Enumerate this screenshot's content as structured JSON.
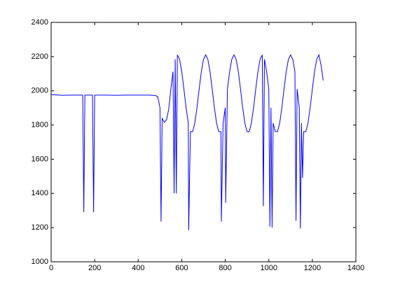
{
  "chart_data": {
    "type": "line",
    "color": "#0000ff",
    "x": [
      0,
      50,
      100,
      145,
      150,
      155,
      190,
      195,
      200,
      250,
      300,
      350,
      400,
      450,
      480,
      490,
      500,
      505,
      510,
      520,
      530,
      540,
      550,
      560,
      565,
      570,
      575,
      580,
      590,
      600,
      610,
      620,
      630,
      632,
      636,
      640,
      650,
      660,
      670,
      680,
      690,
      700,
      710,
      720,
      730,
      740,
      750,
      760,
      770,
      780,
      782,
      790,
      800,
      802,
      810,
      820,
      830,
      840,
      850,
      860,
      870,
      880,
      890,
      900,
      910,
      920,
      930,
      940,
      950,
      960,
      970,
      975,
      980,
      990,
      1000,
      1005,
      1010,
      1015,
      1020,
      1030,
      1040,
      1050,
      1060,
      1070,
      1080,
      1090,
      1100,
      1110,
      1120,
      1125,
      1130,
      1140,
      1145,
      1150,
      1155,
      1160,
      1170,
      1180,
      1190,
      1200,
      1210,
      1220,
      1230,
      1240,
      1250
    ],
    "values": [
      1978,
      1974,
      1975,
      1975,
      1290,
      1975,
      1975,
      1290,
      1975,
      1975,
      1974,
      1975,
      1975,
      1975,
      1972,
      1965,
      1900,
      1235,
      1840,
      1815,
      1830,
      1890,
      2010,
      2112,
      1400,
      2184,
      1400,
      2210,
      2184,
      2112,
      2010,
      1901,
      1811,
      1185,
      1490,
      1761,
      1761,
      1811,
      1901,
      2010,
      2112,
      2184,
      2210,
      2184,
      2112,
      2010,
      1901,
      1811,
      1761,
      1761,
      1235,
      1811,
      1901,
      1345,
      2010,
      2112,
      2184,
      2210,
      2184,
      2112,
      2010,
      1901,
      1811,
      1761,
      1761,
      1811,
      1901,
      2010,
      2112,
      2184,
      2210,
      1325,
      2184,
      2112,
      2010,
      1205,
      1901,
      1200,
      1811,
      1761,
      1761,
      1811,
      1901,
      2010,
      2112,
      2184,
      2210,
      2184,
      2112,
      1240,
      2010,
      1901,
      1195,
      1811,
      1490,
      1761,
      1761,
      1811,
      1901,
      2010,
      2112,
      2184,
      2210,
      2150,
      2060
    ],
    "xlim": [
      0,
      1400
    ],
    "xticks": [
      0,
      200,
      400,
      600,
      800,
      1000,
      1200,
      1400
    ],
    "ylim": [
      1000,
      2400
    ],
    "yticks": [
      1000,
      1200,
      1400,
      1600,
      1800,
      2000,
      2200,
      2400
    ]
  }
}
